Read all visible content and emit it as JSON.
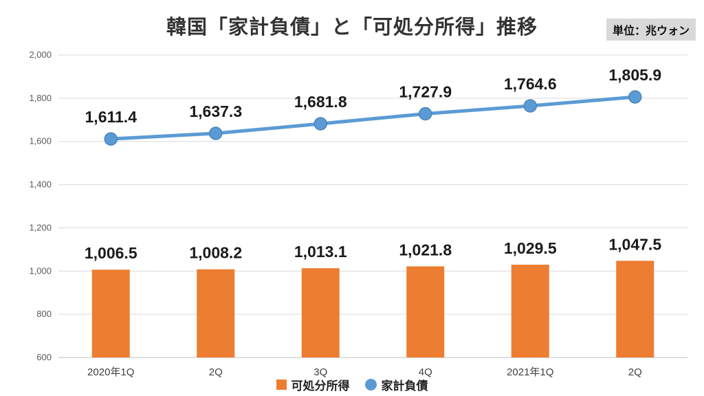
{
  "title": "韓国「家計負債」と「可処分所得」推移",
  "unit_label": "単位：兆ウォン",
  "colors": {
    "bar": "#ED7D31",
    "line": "#5B9BD5",
    "marker_edge": "#4A86B8",
    "grid": "#D9D9D9",
    "axis_line": "#BFBFBF",
    "value_label": "#1A1A1A",
    "axis_text": "#595959",
    "category_text": "#404040",
    "unit_bg": "#D9D9D9"
  },
  "chart_data": {
    "type": "combo",
    "categories": [
      "2020年1Q",
      "2Q",
      "3Q",
      "4Q",
      "2021年1Q",
      "2Q"
    ],
    "series": [
      {
        "name": "可処分所得",
        "type": "bar",
        "color": "#ED7D31",
        "values": [
          1006.5,
          1008.2,
          1013.1,
          1021.8,
          1029.5,
          1047.5
        ],
        "labels": [
          "1,006.5",
          "1,008.2",
          "1,013.1",
          "1,021.8",
          "1,029.5",
          "1,047.5"
        ]
      },
      {
        "name": "家計負債",
        "type": "line",
        "color": "#5B9BD5",
        "values": [
          1611.4,
          1637.3,
          1681.8,
          1727.9,
          1764.6,
          1805.9
        ],
        "labels": [
          "1,611.4",
          "1,637.3",
          "1,681.8",
          "1,727.9",
          "1,764.6",
          "1,805.9"
        ]
      }
    ],
    "title": "韓国「家計負債」と「可処分所得」推移",
    "xlabel": "",
    "ylabel": "",
    "ylim": [
      600,
      2000
    ],
    "ytick_step": 200,
    "ytick_labels": [
      "600",
      "800",
      "1,000",
      "1,200",
      "1,400",
      "1,600",
      "1,800",
      "2,000"
    ],
    "grid": true,
    "legend_position": "bottom"
  },
  "legend": [
    {
      "label": "可処分所得",
      "marker": "square",
      "color": "#ED7D31"
    },
    {
      "label": "家計負債",
      "marker": "circle",
      "color": "#5B9BD5"
    }
  ]
}
